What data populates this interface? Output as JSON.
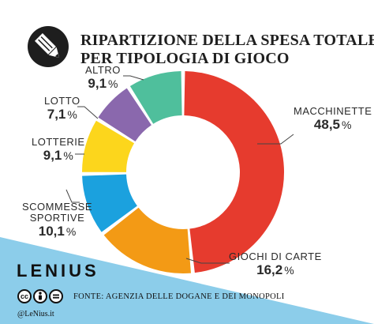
{
  "header": {
    "title_line1": "RIPARTIZIONE DELLA SPESA TOTALE",
    "title_line2": "PER TIPOLOGIA DI GIOCO"
  },
  "chart_data": {
    "type": "pie",
    "variant": "donut",
    "title": "RIPARTIZIONE DELLA SPESA TOTALE PER TIPOLOGIA DI GIOCO",
    "slices": [
      {
        "label": "MACCHINETTE",
        "value": 48.5,
        "display": "48,5",
        "color": "#e63b2e"
      },
      {
        "label": "GIOCHI DI CARTE",
        "value": 16.2,
        "display": "16,2",
        "color": "#f39a15"
      },
      {
        "label": "SCOMMESSE SPORTIVE",
        "label_line1": "SCOMMESSE",
        "label_line2": "SPORTIVE",
        "value": 10.1,
        "display": "10,1",
        "color": "#1ba1de"
      },
      {
        "label": "LOTTERIE",
        "value": 9.1,
        "display": "9,1",
        "color": "#fcd61c"
      },
      {
        "label": "LOTTO",
        "value": 7.1,
        "display": "7,1",
        "color": "#8a68ad"
      },
      {
        "label": "ALTRO",
        "value": 9.1,
        "display": "9,1",
        "color": "#4fbf9c"
      }
    ],
    "unit": "%",
    "legend": "none"
  },
  "footer": {
    "brand": "LENIUS",
    "source": "FONTE: AGENZIA DELLE DOGANE E DEI MONOPOLI",
    "handle": "@LeNius.it",
    "license_icons": [
      "cc",
      "by",
      "nd"
    ],
    "band_color": "#8ccdea"
  }
}
